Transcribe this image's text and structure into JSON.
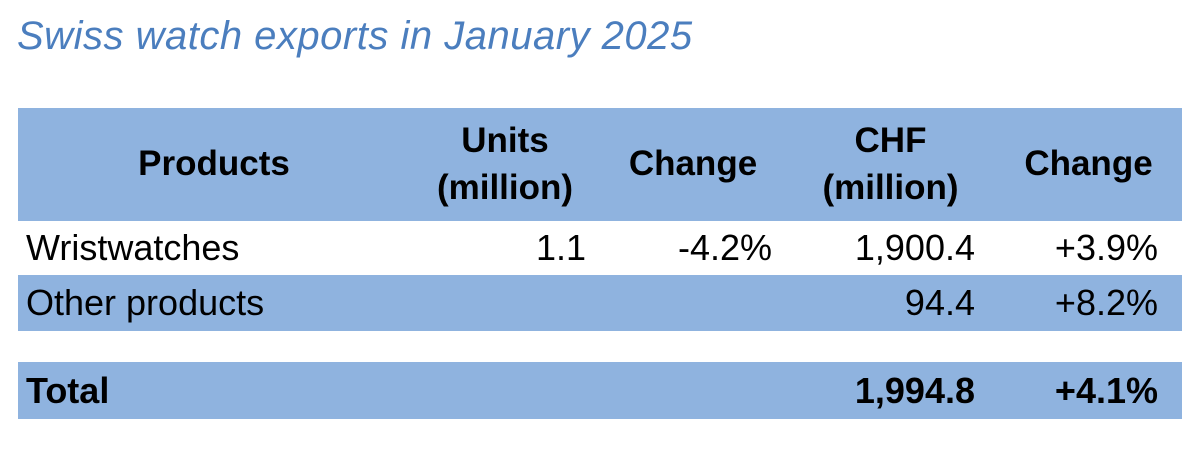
{
  "title": "Swiss watch exports in January 2025",
  "colors": {
    "accent_blue": "#8FB3DF",
    "title_blue": "#4B7EBE",
    "text_black": "#000000",
    "background": "#ffffff"
  },
  "table": {
    "headers": [
      {
        "line1": "Products",
        "line2": ""
      },
      {
        "line1": "Units",
        "line2": "(million)"
      },
      {
        "line1": "Change",
        "line2": ""
      },
      {
        "line1": "CHF",
        "line2": "(million)"
      },
      {
        "line1": "Change",
        "line2": ""
      }
    ],
    "rows": [
      {
        "product": "Wristwatches",
        "units": "1.1",
        "units_change": "-4.2%",
        "chf": "1,900.4",
        "chf_change": "+3.9%"
      },
      {
        "product": "Other products",
        "units": "",
        "units_change": "",
        "chf": "94.4",
        "chf_change": "+8.2%"
      }
    ],
    "total_row": {
      "product": "Total",
      "units": "",
      "units_change": "",
      "chf": "1,994.8",
      "chf_change": "+4.1%"
    }
  },
  "chart_data": {
    "type": "table",
    "title": "Swiss watch exports in January 2025",
    "columns": [
      "Products",
      "Units (million)",
      "Change",
      "CHF (million)",
      "Change"
    ],
    "rows": [
      [
        "Wristwatches",
        1.1,
        "-4.2%",
        1900.4,
        "+3.9%"
      ],
      [
        "Other products",
        null,
        null,
        94.4,
        "+8.2%"
      ],
      [
        "Total",
        null,
        null,
        1994.8,
        "+4.1%"
      ]
    ]
  }
}
